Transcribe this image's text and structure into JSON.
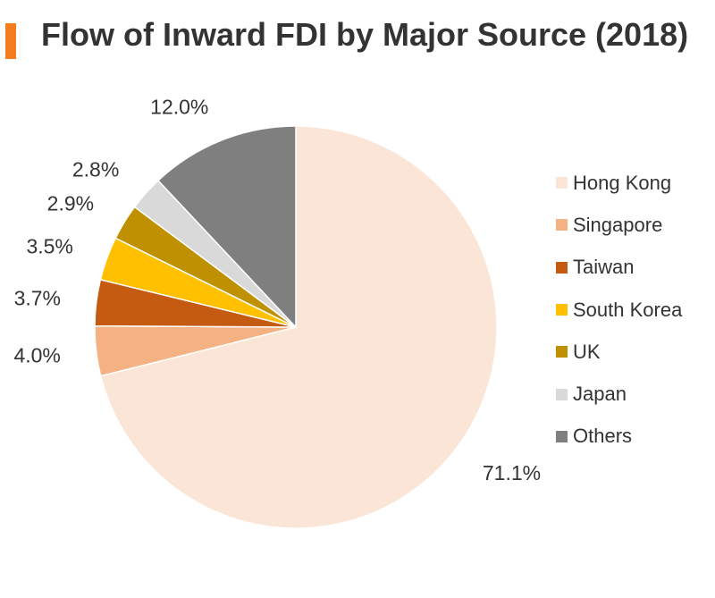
{
  "title": "Flow of Inward FDI by Major Source (2018)",
  "chart_data": {
    "type": "pie",
    "title": "Flow of Inward FDI by Major Source (2018)",
    "unit": "%",
    "legend_position": "right",
    "start_angle_deg": 0,
    "direction": "clockwise",
    "categories": [
      "Hong Kong",
      "Singapore",
      "Taiwan",
      "South Korea",
      "UK",
      "Japan",
      "Others"
    ],
    "values": [
      71.1,
      4.0,
      3.7,
      3.5,
      2.9,
      2.8,
      12.0
    ],
    "labels": [
      "71.1%",
      "4.0%",
      "3.7%",
      "3.5%",
      "2.9%",
      "2.8%",
      "12.0%"
    ],
    "colors": [
      "#fbe5d6",
      "#f4b183",
      "#c55a11",
      "#ffc000",
      "#bf9000",
      "#d9d9d9",
      "#7f7f7f"
    ]
  }
}
